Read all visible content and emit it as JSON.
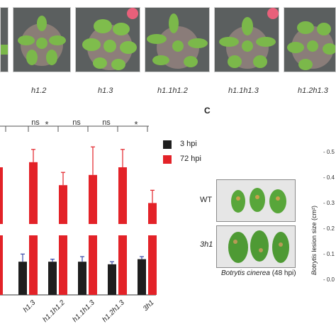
{
  "photos": {
    "genotypes": [
      "h1.2",
      "h1.3",
      "h1.1h1.2",
      "h1.1h1.3",
      "h1.2h1.3"
    ]
  },
  "bar_chart": {
    "significance": [
      "ns",
      "*",
      "ns",
      "ns",
      "*"
    ],
    "legend": [
      {
        "label": "3 hpi",
        "color": "#1e1e1e"
      },
      {
        "label": "72 hpi",
        "color": "#e32228"
      }
    ]
  },
  "chart_data": {
    "type": "bar",
    "categories": [
      "h1.3",
      "h1.1h1.2",
      "h1.1h1.3",
      "h1.2h1.3",
      "3h1"
    ],
    "series": [
      {
        "name": "3 hpi",
        "values": [
          0.13,
          0.13,
          0.13,
          0.12,
          0.14
        ],
        "errors": [
          0.03,
          0.01,
          0.02,
          0.01,
          0.01
        ]
      },
      {
        "name": "72 hpi",
        "values": [
          0.52,
          0.43,
          0.47,
          0.5,
          0.36
        ],
        "errors": [
          0.05,
          0.05,
          0.11,
          0.07,
          0.05
        ]
      }
    ],
    "legend_position": "top-right"
  },
  "panel_c": {
    "label": "C",
    "rows": [
      "WT",
      "3h1"
    ],
    "caption_species": "Botrytis cinerea",
    "caption_time": "(48 hpi)",
    "right_axis": {
      "label_species": "Botrytis",
      "label_rest": "lesion size (cm²)",
      "ticks": [
        "0.5",
        "0.4",
        "0.3",
        "0.2",
        "0.1",
        "0.0"
      ]
    }
  },
  "colors": {
    "black_bar": "#1e1e1e",
    "red_bar": "#e32228",
    "plant_green": "#7bb84a",
    "tray": "#5c6060"
  }
}
